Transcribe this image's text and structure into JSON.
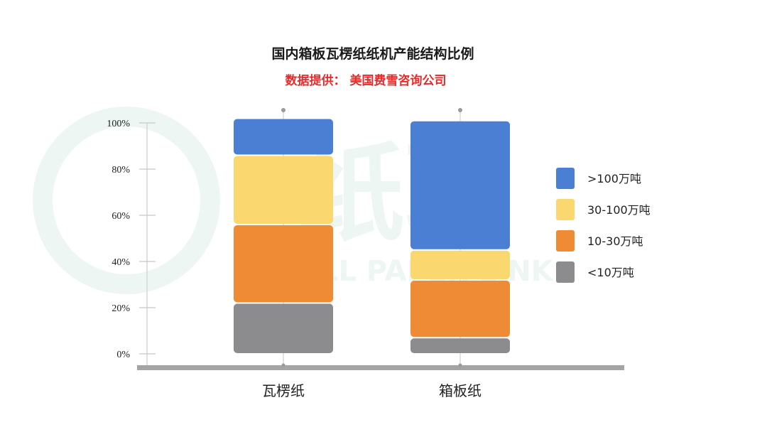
{
  "watermark": {
    "cn": "纸联",
    "en": "ALL PAPER LINK"
  },
  "chart_data": {
    "type": "bar",
    "stacked": true,
    "title": "国内箱板瓦楞纸纸机产能结构比例",
    "subtitle": "数据提供： 美国费雪咨询公司",
    "categories": [
      "瓦楞纸",
      "箱板纸"
    ],
    "yticks": [
      "0%",
      "20%",
      "40%",
      "60%",
      "80%",
      "100%"
    ],
    "ylim": [
      0,
      100
    ],
    "series": [
      {
        "name": "<10万吨",
        "color": "#8c8c8e",
        "values": [
          22,
          7
        ]
      },
      {
        "name": "10-30万吨",
        "color": "#ef8a35",
        "values": [
          34,
          25
        ]
      },
      {
        "name": "30-100万吨",
        "color": "#fbd86f",
        "values": [
          30,
          13
        ]
      },
      {
        "name": ">100万吨",
        "color": "#4a7fd3",
        "values": [
          16,
          56
        ]
      }
    ],
    "legend_order": [
      ">100万吨",
      "30-100万吨",
      "10-30万吨",
      "<10万吨"
    ],
    "legend_position": "right",
    "subtitle_color": "#e52b2b"
  }
}
